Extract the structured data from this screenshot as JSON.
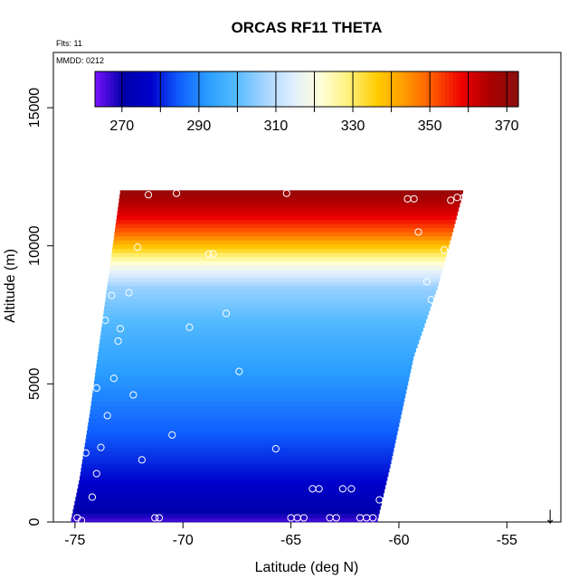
{
  "chart_data": {
    "type": "heatmap",
    "title": "ORCAS RF11 THETA",
    "notes": {
      "flights": "Flts: 11",
      "date": "MMDD: 0212"
    },
    "xlabel": "Latitude (deg N)",
    "ylabel": "Altitude (m)",
    "xlim": [
      -76,
      -52.5
    ],
    "ylim": [
      0,
      17000
    ],
    "x_ticks": [
      -75,
      -70,
      -65,
      -60,
      -55
    ],
    "x_tick_labels": [
      "-75",
      "-70",
      "-65",
      "-60",
      "-55"
    ],
    "y_ticks": [
      0,
      5000,
      10000,
      15000
    ],
    "y_tick_labels": [
      "0",
      "5000",
      "10000",
      "15000"
    ],
    "colorbar": {
      "min": 263,
      "max": 373,
      "ticks": [
        270,
        290,
        310,
        330,
        350,
        370
      ],
      "tick_labels": [
        "270",
        "290",
        "310",
        "330",
        "350",
        "370"
      ],
      "colors": [
        "#7a12ff",
        "#0000aa",
        "#0000cc",
        "#1060ff",
        "#2a9dff",
        "#55bbff",
        "#a4d4ff",
        "#dfefff",
        "#ffffd8",
        "#fff07a",
        "#ffcc00",
        "#ff9900",
        "#ff5500",
        "#ee0000",
        "#aa0000",
        "#8b1010"
      ]
    },
    "field": {
      "altitude_bottom": 0,
      "altitude_top": 12000,
      "lower_left_edge": [
        [
          0,
          -75.2
        ],
        [
          1500,
          -74.8
        ],
        [
          4000,
          -74.3
        ],
        [
          12000,
          -72.9
        ]
      ],
      "right_edge": [
        [
          0,
          -61.0
        ],
        [
          2000,
          -60.4
        ],
        [
          6000,
          -59.3
        ],
        [
          8500,
          -58.2
        ],
        [
          10500,
          -57.5
        ],
        [
          12000,
          -57.0
        ]
      ],
      "theta_profile": [
        [
          0,
          266
        ],
        [
          500,
          272
        ],
        [
          1500,
          278
        ],
        [
          3000,
          284
        ],
        [
          5000,
          291
        ],
        [
          7000,
          298
        ],
        [
          8500,
          306
        ],
        [
          9200,
          318
        ],
        [
          9600,
          328
        ],
        [
          10000,
          338
        ],
        [
          10500,
          350
        ],
        [
          11000,
          358
        ],
        [
          11500,
          364
        ],
        [
          12000,
          370
        ]
      ]
    },
    "points": [
      [
        -74.9,
        150
      ],
      [
        -74.7,
        50
      ],
      [
        -74.2,
        900
      ],
      [
        -74.0,
        1750
      ],
      [
        -74.5,
        2500
      ],
      [
        -73.8,
        2700
      ],
      [
        -73.5,
        3850
      ],
      [
        -74.0,
        4850
      ],
      [
        -73.2,
        5200
      ],
      [
        -72.3,
        4600
      ],
      [
        -73.0,
        6550
      ],
      [
        -72.9,
        7000
      ],
      [
        -73.6,
        7300
      ],
      [
        -73.3,
        8200
      ],
      [
        -72.5,
        8300
      ],
      [
        -72.1,
        9950
      ],
      [
        -71.6,
        11850
      ],
      [
        -70.3,
        11900
      ],
      [
        -71.9,
        2250
      ],
      [
        -71.3,
        150
      ],
      [
        -71.1,
        150
      ],
      [
        -70.5,
        3150
      ],
      [
        -69.7,
        7050
      ],
      [
        -68.8,
        9700
      ],
      [
        -68.6,
        9700
      ],
      [
        -68.0,
        7550
      ],
      [
        -67.4,
        5450
      ],
      [
        -65.7,
        2650
      ],
      [
        -65.0,
        150
      ],
      [
        -64.7,
        150
      ],
      [
        -64.4,
        150
      ],
      [
        -64.0,
        1200
      ],
      [
        -63.7,
        1200
      ],
      [
        -63.2,
        150
      ],
      [
        -62.9,
        150
      ],
      [
        -62.6,
        1200
      ],
      [
        -62.2,
        1200
      ],
      [
        -61.8,
        150
      ],
      [
        -61.5,
        150
      ],
      [
        -61.2,
        150
      ],
      [
        -60.9,
        800
      ],
      [
        -59.6,
        11700
      ],
      [
        -59.3,
        11700
      ],
      [
        -59.1,
        10500
      ],
      [
        -58.7,
        8700
      ],
      [
        -58.5,
        8050
      ],
      [
        -58.1,
        8250
      ],
      [
        -57.9,
        9850
      ],
      [
        -57.6,
        11650
      ],
      [
        -57.3,
        11750
      ],
      [
        -57.0,
        11750
      ],
      [
        -65.2,
        11900
      ]
    ]
  },
  "direction_arrow": {
    "label": "↓",
    "latitude": -53
  }
}
